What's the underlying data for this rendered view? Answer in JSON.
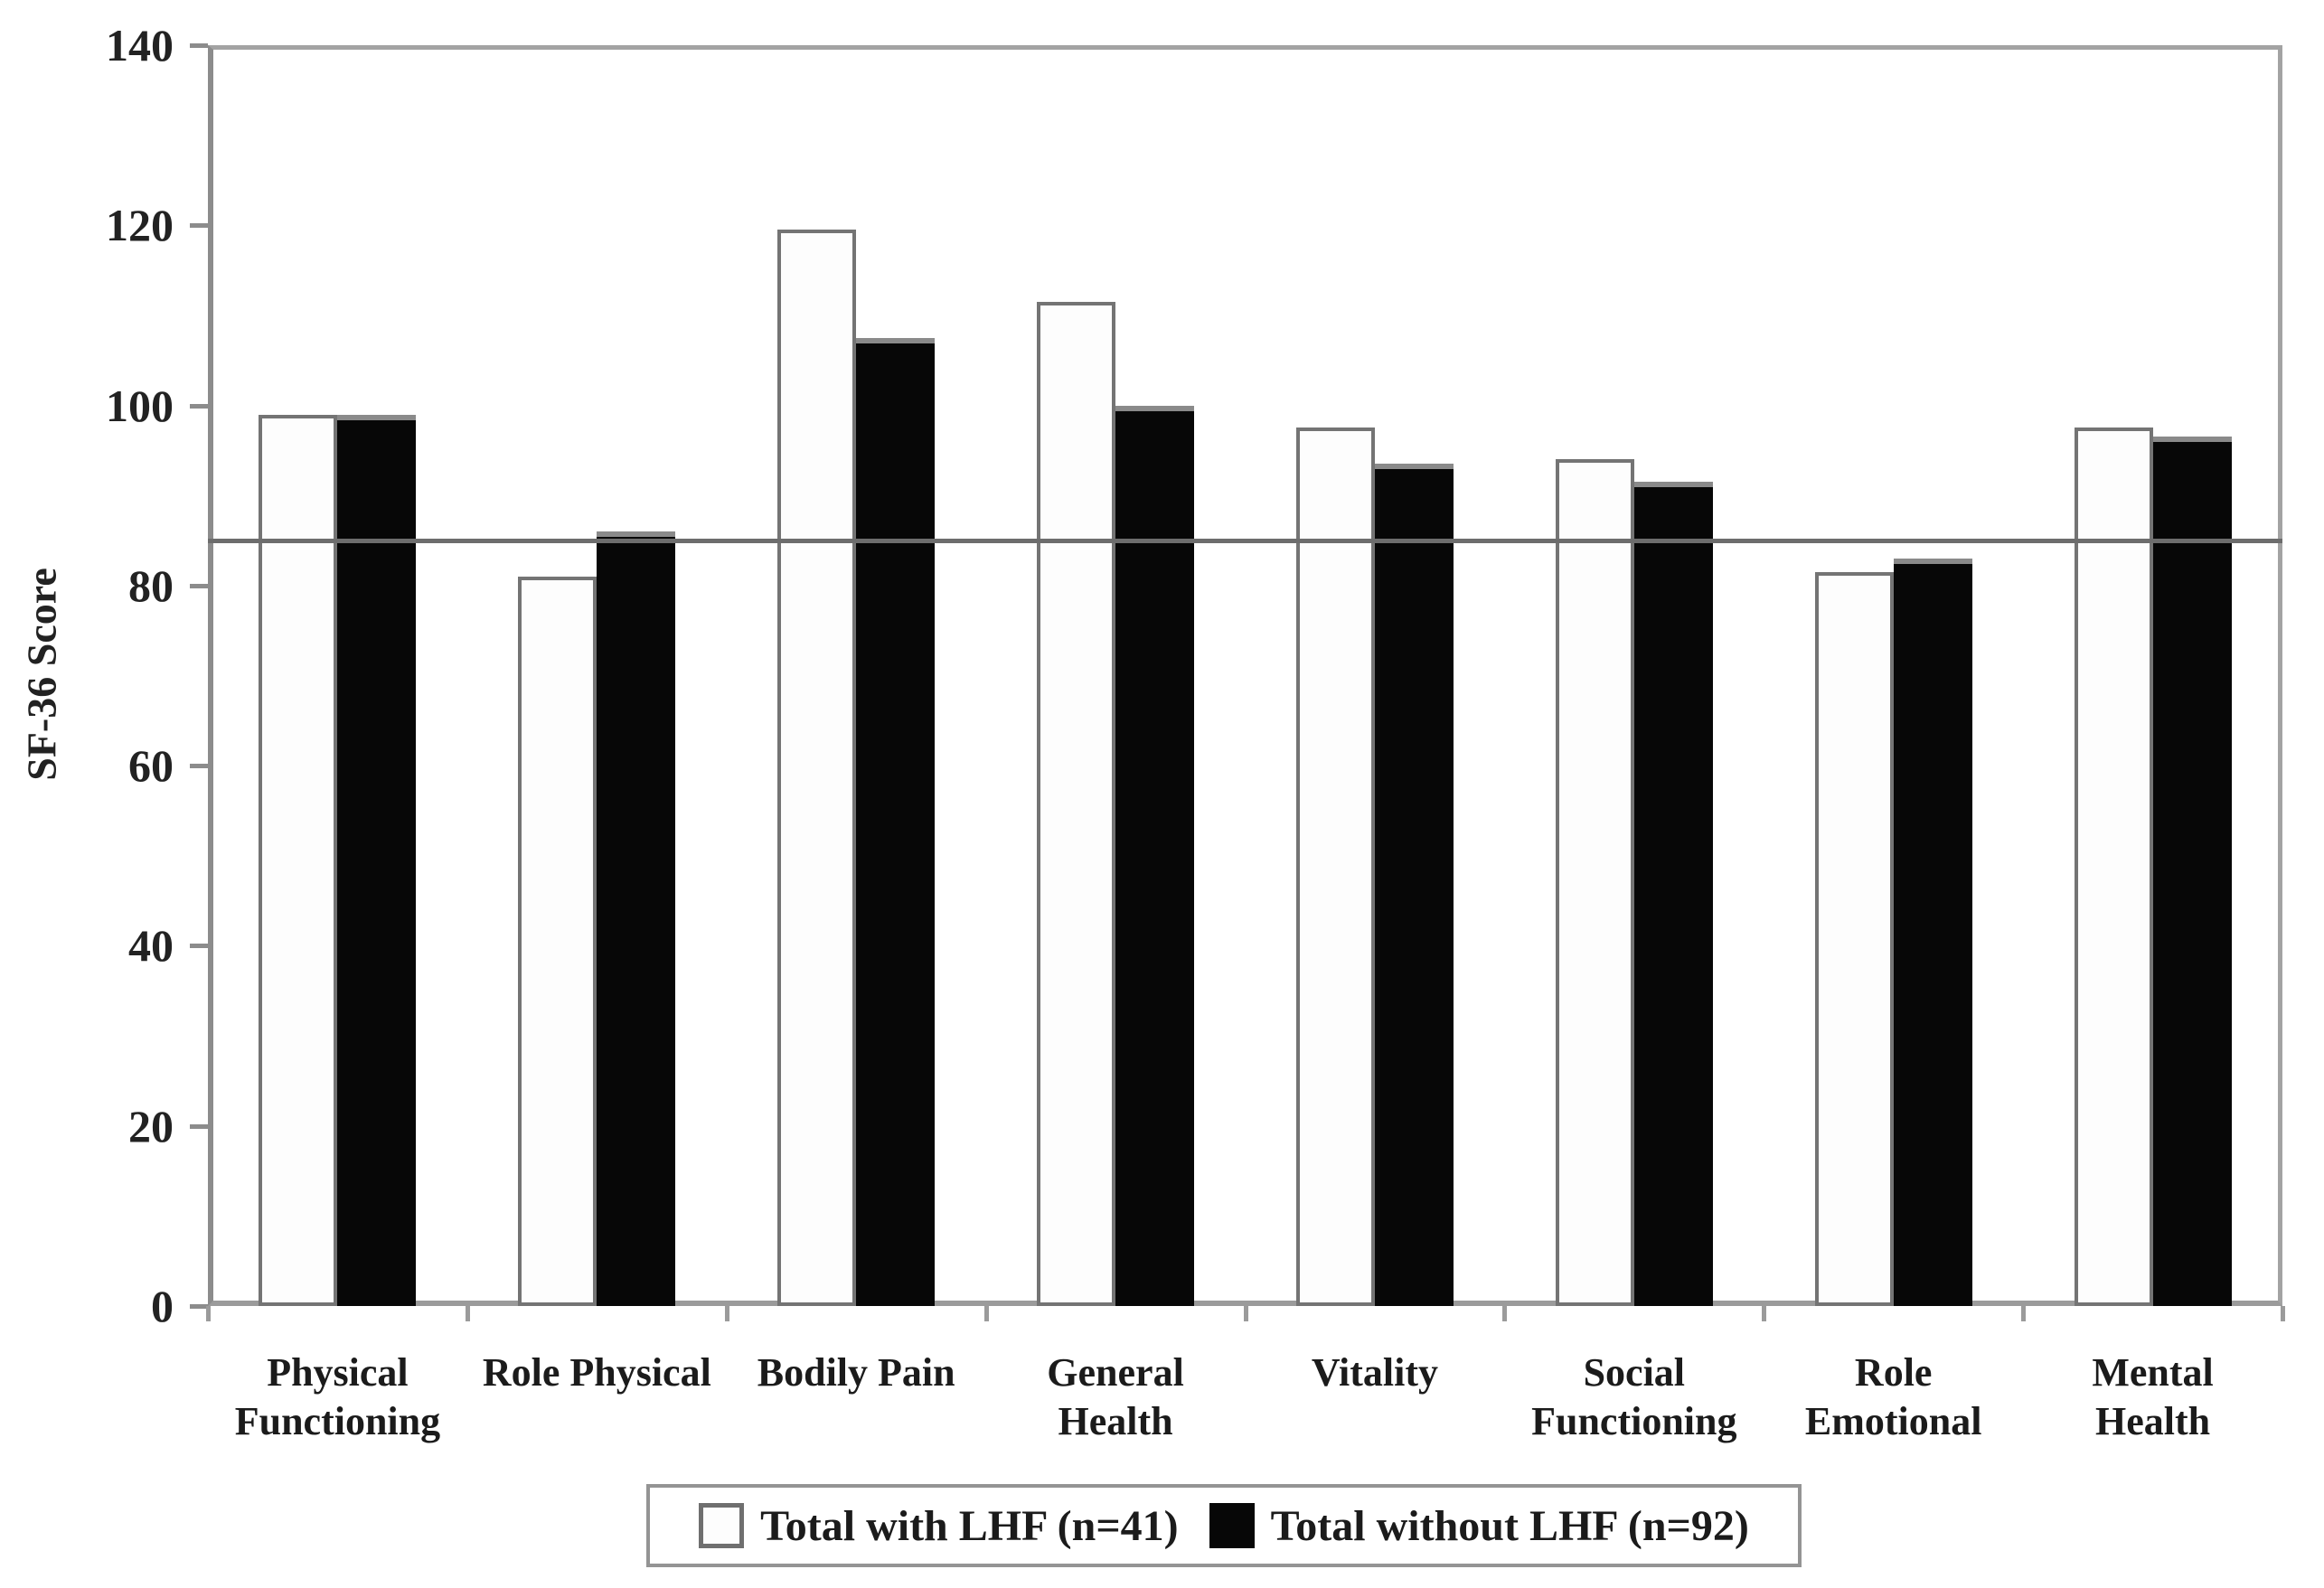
{
  "chart_data": {
    "type": "bar",
    "title": "",
    "ylabel": "SF-36 Score",
    "xlabel": "",
    "ylim": [
      0,
      140
    ],
    "yticks": [
      140,
      120,
      100,
      80,
      60,
      40,
      20,
      0
    ],
    "grid": false,
    "legend_position": "bottom",
    "reference_line_value": 85,
    "categories": [
      "Physical Functioning",
      "Role Physical",
      "Bodily Pain",
      "General Health",
      "Vitality",
      "Social Functioning",
      "Role Emotional",
      "Mental Health"
    ],
    "series": [
      {
        "name": "Total with LHF (n=41)",
        "swatch": "white-outline",
        "fill": "#fdfdfd",
        "values": [
          99,
          81,
          119.5,
          111.5,
          97.5,
          94,
          81.5,
          97.5
        ]
      },
      {
        "name": "Total without LHF (n=92)",
        "swatch": "black",
        "fill": "#070707",
        "values": [
          99,
          86,
          107.5,
          100,
          93.5,
          91.5,
          83,
          96.5
        ]
      }
    ]
  },
  "colors": {
    "background": "#ffffff",
    "axis": "#8c8c8c",
    "plot_border": "#a3a3a3",
    "reference_line": "#6d6d6d",
    "bar_outline": "#747474",
    "bar_black": "#070707",
    "text": "#1b1b1b",
    "legend_border": "#949494"
  }
}
